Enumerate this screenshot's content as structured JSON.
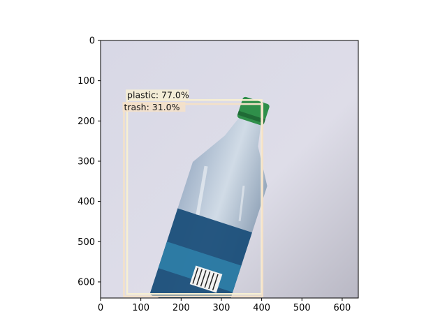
{
  "axes": {
    "x_range": [
      0,
      640
    ],
    "y_range": [
      640,
      0
    ],
    "x_ticks": [
      0,
      100,
      200,
      300,
      400,
      500,
      600
    ],
    "y_ticks": [
      0,
      100,
      200,
      300,
      400,
      500,
      600
    ]
  },
  "image_description_colors": {
    "background": "#dcdde8",
    "bottle_cap": "#2f8f4a",
    "label_blue": "#1b4f7a"
  },
  "detections": [
    {
      "label": "plastic: 77.0%",
      "box_data": [
        66,
        148,
        400,
        630
      ],
      "box_color": "#f7efd2"
    },
    {
      "label": "trash: 31.0%",
      "box_data": [
        58,
        158,
        402,
        636
      ],
      "box_color": "#f4e1c8"
    }
  ]
}
